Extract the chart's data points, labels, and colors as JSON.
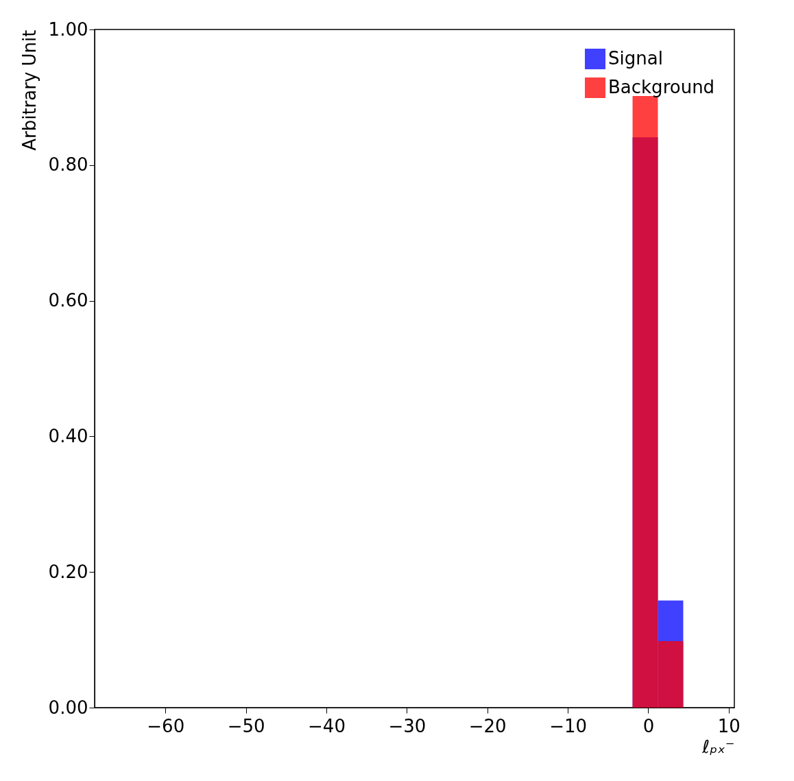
{
  "chart_data": {
    "type": "histogram",
    "xlabel": "ℓₚₓ⁻",
    "ylabel": "Arbitrary Unit",
    "bins": [
      -1.95,
      1.2,
      4.35
    ],
    "series": [
      {
        "name": "Signal",
        "color": "#0000ff",
        "values": [
          0.841,
          0.158
        ]
      },
      {
        "name": "Background",
        "color": "#ff0000",
        "values": [
          0.902,
          0.098
        ]
      }
    ],
    "xlim": [
      -68.8,
      10.7
    ],
    "xticks": [
      -60,
      -50,
      -40,
      -30,
      -20,
      -10,
      0,
      10
    ],
    "ylim": [
      0,
      1
    ],
    "yticks": [
      {
        "value": 0,
        "label": "0.00"
      },
      {
        "value": 0.2,
        "label": "0.20"
      },
      {
        "value": 0.4,
        "label": "0.40"
      },
      {
        "value": 0.6,
        "label": "0.60"
      },
      {
        "value": 0.8,
        "label": "0.80"
      },
      {
        "value": 1,
        "label": "1.00"
      }
    ],
    "legend": "top right",
    "grid": false
  }
}
